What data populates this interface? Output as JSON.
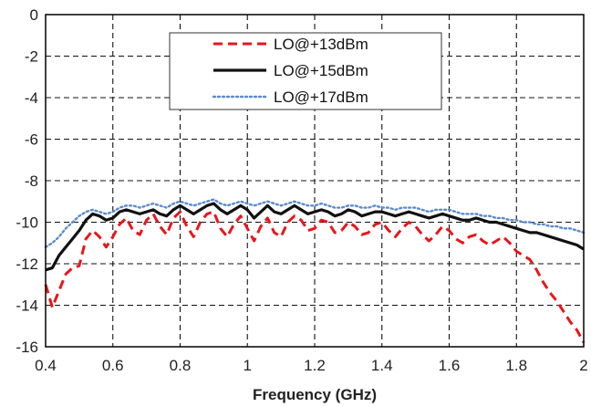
{
  "chart_data": {
    "type": "line",
    "xlabel": "Frequency (GHz)",
    "ylabel": "",
    "xlim": [
      0.4,
      2.0
    ],
    "ylim": [
      -16,
      0
    ],
    "xticks": [
      "0.4",
      "0.6",
      "0.8",
      "1",
      "1.2",
      "1.4",
      "1.6",
      "1.8",
      "2"
    ],
    "yticks": [
      "0",
      "-2",
      "-4",
      "-6",
      "-8",
      "-10",
      "-12",
      "-14",
      "-16"
    ],
    "grid": true,
    "legend_position": "top-center",
    "series": [
      {
        "name": "LO@+13dBm",
        "color": "#e8161b",
        "style": "dashed",
        "x": [
          0.4,
          0.42,
          0.44,
          0.46,
          0.48,
          0.5,
          0.52,
          0.54,
          0.56,
          0.58,
          0.6,
          0.62,
          0.64,
          0.66,
          0.68,
          0.7,
          0.72,
          0.74,
          0.76,
          0.78,
          0.8,
          0.82,
          0.84,
          0.86,
          0.88,
          0.9,
          0.92,
          0.94,
          0.96,
          0.98,
          1.0,
          1.02,
          1.04,
          1.06,
          1.08,
          1.1,
          1.12,
          1.14,
          1.16,
          1.18,
          1.2,
          1.22,
          1.24,
          1.26,
          1.28,
          1.3,
          1.32,
          1.34,
          1.36,
          1.38,
          1.4,
          1.42,
          1.44,
          1.46,
          1.48,
          1.5,
          1.52,
          1.54,
          1.56,
          1.58,
          1.6,
          1.62,
          1.64,
          1.66,
          1.68,
          1.7,
          1.72,
          1.74,
          1.76,
          1.78,
          1.8,
          1.82,
          1.84,
          1.86,
          1.88,
          1.9,
          1.92,
          1.94,
          1.96,
          1.98,
          2.0
        ],
        "values": [
          -13.0,
          -14.1,
          -13.3,
          -12.5,
          -12.2,
          -12.1,
          -10.8,
          -10.4,
          -10.7,
          -11.2,
          -10.7,
          -10.1,
          -9.8,
          -10.4,
          -10.6,
          -9.9,
          -9.6,
          -10.2,
          -10.6,
          -9.8,
          -9.5,
          -10.2,
          -10.7,
          -10.0,
          -9.6,
          -9.5,
          -10.3,
          -10.7,
          -10.1,
          -9.7,
          -10.3,
          -10.9,
          -10.2,
          -9.8,
          -10.5,
          -10.7,
          -10.0,
          -9.7,
          -9.9,
          -10.4,
          -10.3,
          -9.9,
          -10.0,
          -10.5,
          -10.4,
          -10.0,
          -10.2,
          -10.6,
          -10.5,
          -10.1,
          -10.0,
          -10.4,
          -10.7,
          -10.3,
          -10.0,
          -10.2,
          -10.6,
          -10.9,
          -10.6,
          -10.2,
          -10.4,
          -10.8,
          -11.0,
          -10.7,
          -10.6,
          -10.9,
          -11.1,
          -10.9,
          -10.7,
          -11.0,
          -11.4,
          -11.6,
          -11.8,
          -12.3,
          -12.9,
          -13.4,
          -13.8,
          -14.3,
          -14.8,
          -15.2,
          -15.8
        ]
      },
      {
        "name": "LO@+15dBm",
        "color": "#111111",
        "style": "solid",
        "x": [
          0.4,
          0.42,
          0.44,
          0.46,
          0.48,
          0.5,
          0.52,
          0.54,
          0.56,
          0.58,
          0.6,
          0.62,
          0.64,
          0.66,
          0.68,
          0.7,
          0.72,
          0.74,
          0.76,
          0.78,
          0.8,
          0.82,
          0.84,
          0.86,
          0.88,
          0.9,
          0.92,
          0.94,
          0.96,
          0.98,
          1.0,
          1.02,
          1.04,
          1.06,
          1.08,
          1.1,
          1.12,
          1.14,
          1.16,
          1.18,
          1.2,
          1.22,
          1.24,
          1.26,
          1.28,
          1.3,
          1.32,
          1.34,
          1.36,
          1.38,
          1.4,
          1.42,
          1.44,
          1.46,
          1.48,
          1.5,
          1.52,
          1.54,
          1.56,
          1.58,
          1.6,
          1.62,
          1.64,
          1.66,
          1.68,
          1.7,
          1.72,
          1.74,
          1.76,
          1.78,
          1.8,
          1.82,
          1.84,
          1.86,
          1.88,
          1.9,
          1.92,
          1.94,
          1.96,
          1.98,
          2.0
        ],
        "values": [
          -12.3,
          -12.2,
          -11.6,
          -11.2,
          -10.8,
          -10.4,
          -9.9,
          -9.6,
          -9.7,
          -9.9,
          -9.8,
          -9.5,
          -9.4,
          -9.5,
          -9.6,
          -9.5,
          -9.4,
          -9.6,
          -9.7,
          -9.4,
          -9.2,
          -9.4,
          -9.6,
          -9.4,
          -9.2,
          -9.1,
          -9.4,
          -9.6,
          -9.4,
          -9.2,
          -9.4,
          -9.8,
          -9.5,
          -9.2,
          -9.5,
          -9.6,
          -9.4,
          -9.2,
          -9.4,
          -9.6,
          -9.5,
          -9.4,
          -9.5,
          -9.7,
          -9.6,
          -9.4,
          -9.5,
          -9.7,
          -9.6,
          -9.5,
          -9.5,
          -9.6,
          -9.7,
          -9.6,
          -9.5,
          -9.6,
          -9.7,
          -9.8,
          -9.7,
          -9.6,
          -9.7,
          -9.8,
          -9.9,
          -9.9,
          -9.8,
          -9.9,
          -10.0,
          -10.0,
          -10.1,
          -10.2,
          -10.3,
          -10.4,
          -10.5,
          -10.5,
          -10.6,
          -10.7,
          -10.8,
          -10.9,
          -11.0,
          -11.1,
          -11.3
        ]
      },
      {
        "name": "LO@+17dBm",
        "color": "#5b8bd0",
        "style": "dotted",
        "x": [
          0.4,
          0.42,
          0.44,
          0.46,
          0.48,
          0.5,
          0.52,
          0.54,
          0.56,
          0.58,
          0.6,
          0.62,
          0.64,
          0.66,
          0.68,
          0.7,
          0.72,
          0.74,
          0.76,
          0.78,
          0.8,
          0.82,
          0.84,
          0.86,
          0.88,
          0.9,
          0.92,
          0.94,
          0.96,
          0.98,
          1.0,
          1.02,
          1.04,
          1.06,
          1.08,
          1.1,
          1.12,
          1.14,
          1.16,
          1.18,
          1.2,
          1.22,
          1.24,
          1.26,
          1.28,
          1.3,
          1.32,
          1.34,
          1.36,
          1.38,
          1.4,
          1.42,
          1.44,
          1.46,
          1.48,
          1.5,
          1.52,
          1.54,
          1.56,
          1.58,
          1.6,
          1.62,
          1.64,
          1.66,
          1.68,
          1.7,
          1.72,
          1.74,
          1.76,
          1.78,
          1.8,
          1.82,
          1.84,
          1.86,
          1.88,
          1.9,
          1.92,
          1.94,
          1.96,
          1.98,
          2.0
        ],
        "values": [
          -11.2,
          -11.0,
          -10.7,
          -10.3,
          -10.0,
          -9.7,
          -9.5,
          -9.4,
          -9.5,
          -9.6,
          -9.5,
          -9.3,
          -9.2,
          -9.2,
          -9.3,
          -9.2,
          -9.1,
          -9.2,
          -9.3,
          -9.1,
          -9.0,
          -9.1,
          -9.2,
          -9.1,
          -9.0,
          -8.9,
          -9.1,
          -9.2,
          -9.1,
          -9.0,
          -9.1,
          -9.2,
          -9.1,
          -9.0,
          -9.1,
          -9.2,
          -9.1,
          -9.0,
          -9.1,
          -9.2,
          -9.2,
          -9.1,
          -9.2,
          -9.3,
          -9.3,
          -9.2,
          -9.2,
          -9.3,
          -9.3,
          -9.2,
          -9.3,
          -9.3,
          -9.4,
          -9.3,
          -9.3,
          -9.3,
          -9.4,
          -9.5,
          -9.4,
          -9.4,
          -9.4,
          -9.5,
          -9.6,
          -9.6,
          -9.6,
          -9.7,
          -9.7,
          -9.8,
          -9.8,
          -9.9,
          -9.9,
          -10.0,
          -10.0,
          -10.1,
          -10.1,
          -10.2,
          -10.2,
          -10.3,
          -10.3,
          -10.4,
          -10.5
        ]
      }
    ]
  }
}
